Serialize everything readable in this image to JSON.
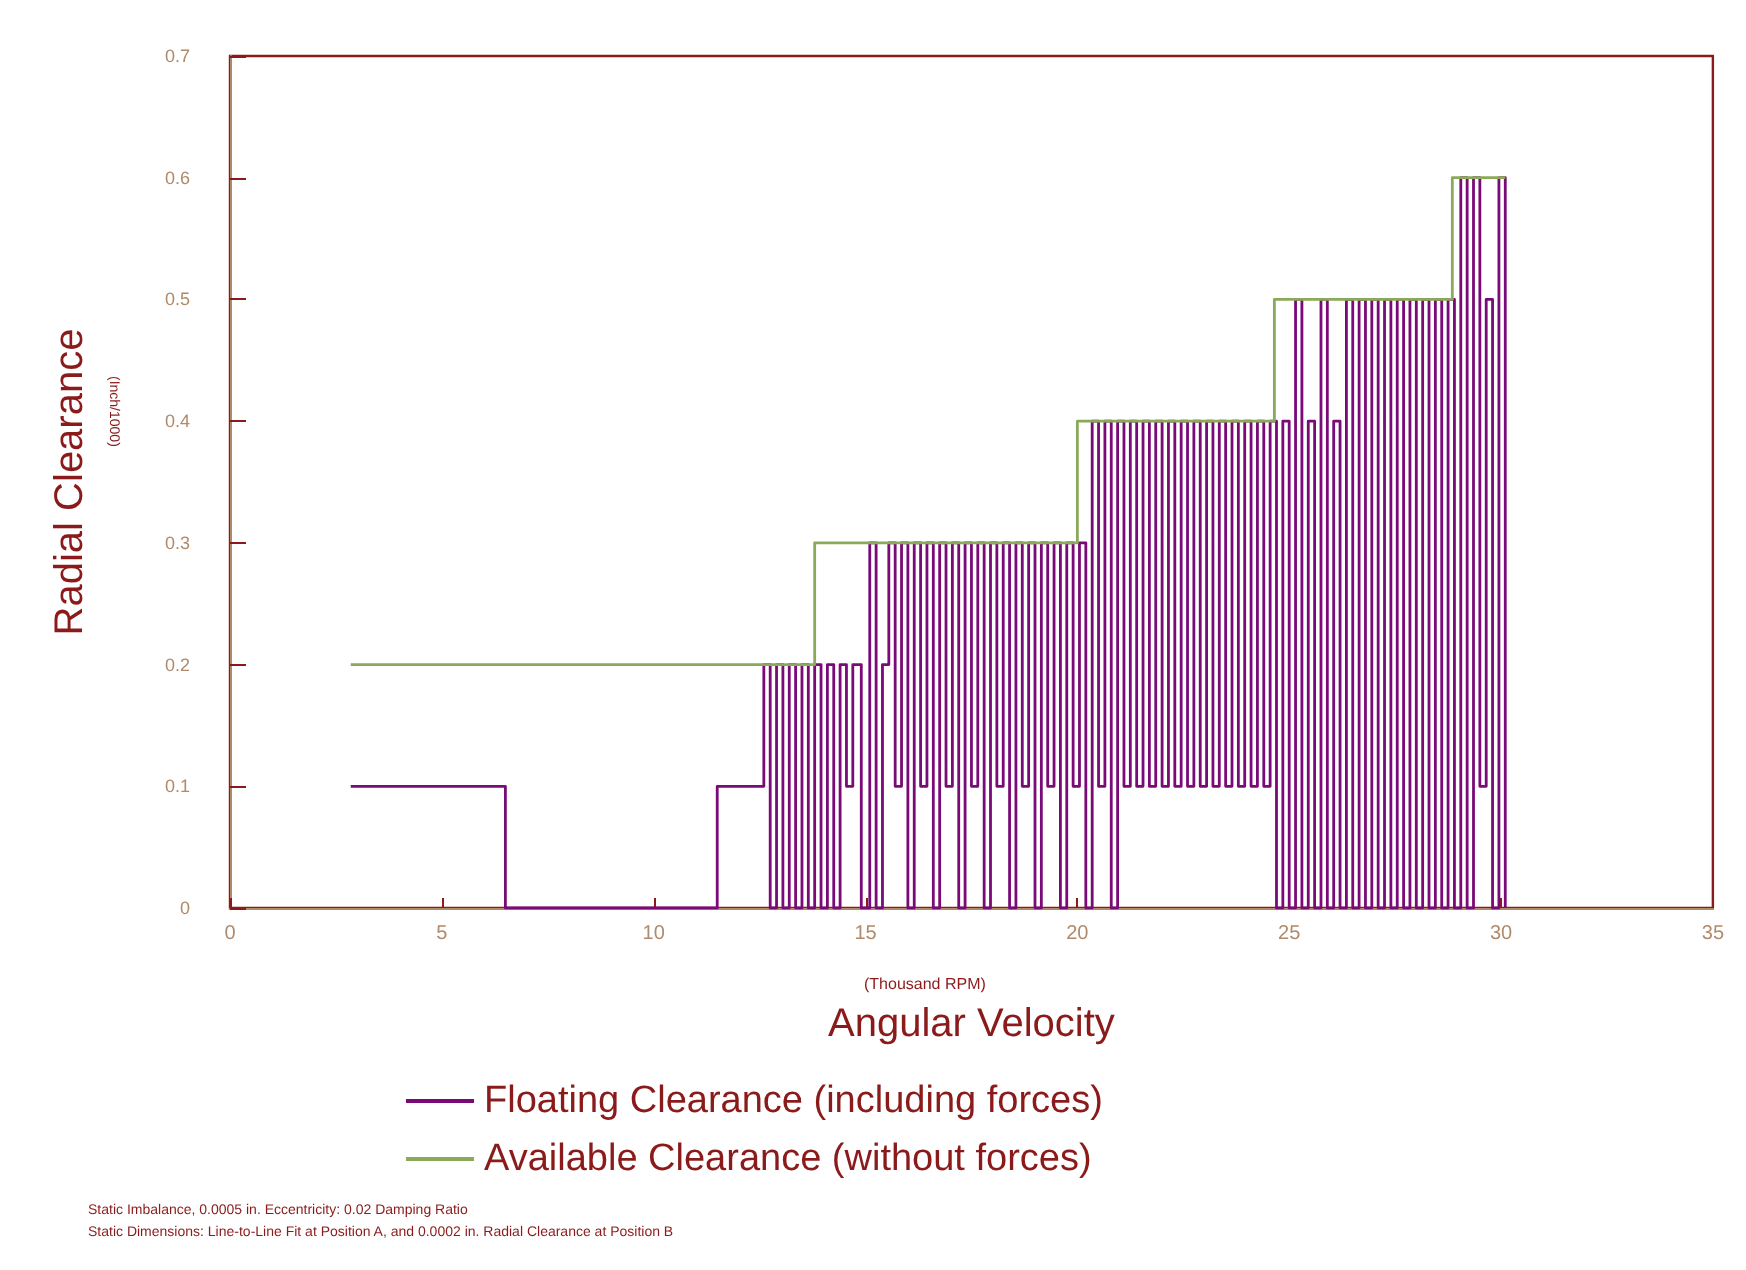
{
  "chart_data": {
    "type": "step",
    "xlabel": "Angular Velocity",
    "ylabel": "Radial Clearance",
    "annotations": [
      "(Inch/1000)",
      "(Thousand RPM)",
      "Static Imbalance, 0.0005 in. Eccentricity: 0.02 Damping Ratio",
      "Static Dimensions: Line-to-Line Fit at Position A, and 0.0002 in. Radial Clearance at Position B"
    ],
    "xlim": [
      0,
      35
    ],
    "xticks": [
      0,
      5,
      10,
      15,
      20,
      25,
      30,
      35
    ],
    "ylim": [
      0,
      0.7
    ],
    "yticks": [
      0,
      0.1,
      0.2,
      0.3,
      0.4,
      0.5,
      0.6,
      0.7
    ],
    "grid": false,
    "legend": "bottom",
    "marker": "none",
    "line_style": "solid",
    "series": [
      {
        "name": "Floating Clearance (including forces)",
        "color": "#7a0a78",
        "x": [
          2.85,
          6.5,
          11.5,
          12.6,
          12.75,
          12.9,
          13.05,
          13.2,
          13.35,
          13.5,
          13.65,
          13.8,
          13.95,
          14.1,
          14.25,
          14.4,
          14.55,
          14.7,
          14.9,
          15.1,
          15.25,
          15.4,
          15.55,
          15.7,
          15.85,
          16.0,
          16.15,
          16.3,
          16.45,
          16.6,
          16.75,
          16.9,
          17.05,
          17.2,
          17.35,
          17.5,
          17.65,
          17.8,
          17.95,
          18.1,
          18.25,
          18.4,
          18.55,
          18.7,
          18.85,
          19.0,
          19.15,
          19.3,
          19.45,
          19.6,
          19.75,
          19.9,
          20.05,
          20.2,
          20.35,
          20.5,
          20.65,
          20.8,
          20.95,
          21.1,
          21.25,
          21.4,
          21.55,
          21.7,
          21.85,
          22.0,
          22.15,
          22.3,
          22.45,
          22.6,
          22.75,
          22.9,
          23.05,
          23.2,
          23.35,
          23.5,
          23.65,
          23.8,
          23.95,
          24.1,
          24.25,
          24.4,
          24.55,
          24.7,
          24.85,
          25.0,
          25.15,
          25.3,
          25.45,
          25.6,
          25.75,
          25.9,
          26.05,
          26.2,
          26.35,
          26.5,
          26.65,
          26.8,
          26.95,
          27.1,
          27.25,
          27.4,
          27.55,
          27.7,
          27.85,
          28.0,
          28.15,
          28.3,
          28.45,
          28.6,
          28.75,
          28.9,
          29.05,
          29.2,
          29.35,
          29.5,
          29.65,
          29.8,
          29.95,
          30.1
        ],
        "values": [
          0.1,
          0,
          0.1,
          0.2,
          0,
          0.2,
          0,
          0.2,
          0,
          0.2,
          0,
          0.2,
          0,
          0.2,
          0,
          0.2,
          0.1,
          0.2,
          0,
          0.3,
          0,
          0.2,
          0.3,
          0.1,
          0.3,
          0,
          0.3,
          0.1,
          0.3,
          0,
          0.3,
          0.1,
          0.3,
          0,
          0.3,
          0.1,
          0.3,
          0,
          0.3,
          0.1,
          0.3,
          0,
          0.3,
          0.1,
          0.3,
          0,
          0.3,
          0.1,
          0.3,
          0,
          0.3,
          0.1,
          0.3,
          0,
          0.4,
          0.1,
          0.4,
          0,
          0.4,
          0.1,
          0.4,
          0.1,
          0.4,
          0.1,
          0.4,
          0.1,
          0.4,
          0.1,
          0.4,
          0.1,
          0.4,
          0.1,
          0.4,
          0.1,
          0.4,
          0.1,
          0.4,
          0.1,
          0.4,
          0.1,
          0.4,
          0.1,
          0.4,
          0,
          0.4,
          0,
          0.5,
          0,
          0.4,
          0,
          0.5,
          0,
          0.4,
          0,
          0.5,
          0,
          0.5,
          0,
          0.5,
          0,
          0.5,
          0,
          0.5,
          0,
          0.5,
          0,
          0.5,
          0,
          0.5,
          0,
          0.5,
          0,
          0.6,
          0,
          0.6,
          0.1,
          0.5,
          0,
          0.6,
          0
        ]
      },
      {
        "name": "Available Clearance (without forces)",
        "color": "#8aaa5a",
        "x": [
          2.85,
          13.8,
          20.0,
          24.65,
          28.85,
          30.1
        ],
        "values": [
          0.2,
          0.3,
          0.4,
          0.5,
          0.6,
          0.6
        ]
      }
    ]
  }
}
